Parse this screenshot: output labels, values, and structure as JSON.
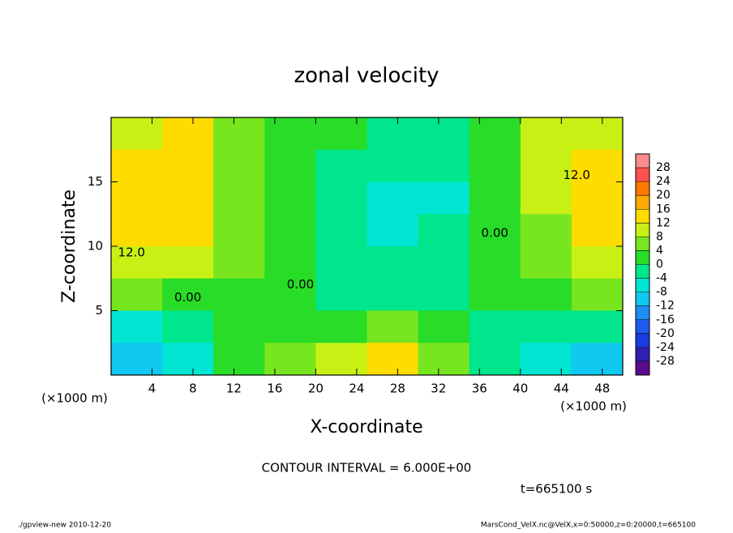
{
  "chart_data": {
    "type": "contour",
    "title": "zonal velocity",
    "x_label": "X-coordinate",
    "y_label": "Z-coordinate",
    "x_unit": "(×1000 m)",
    "xlim": [
      0,
      50
    ],
    "ylim": [
      0,
      20
    ],
    "xticks": [
      4,
      8,
      12,
      16,
      20,
      24,
      28,
      32,
      36,
      40,
      44,
      48
    ],
    "yticks": [
      5,
      10,
      15
    ],
    "x": [
      2.5,
      7.5,
      12.5,
      17.5,
      22.5,
      27.5,
      32.5,
      37.5,
      42.5,
      47.5
    ],
    "y": [
      18.75,
      16.25,
      13.75,
      11.25,
      8.75,
      6.25,
      3.75,
      1.25
    ],
    "values": [
      [
        10,
        12,
        6,
        2,
        0,
        -2,
        -2,
        2,
        8,
        8
      ],
      [
        12,
        14,
        6,
        2,
        -2,
        -4,
        -4,
        2,
        8,
        12
      ],
      [
        14,
        14,
        6,
        2,
        -2,
        -8,
        -6,
        0,
        8,
        14
      ],
      [
        14,
        12,
        6,
        2,
        -2,
        -6,
        -4,
        0,
        6,
        14
      ],
      [
        10,
        8,
        4,
        0,
        -2,
        -4,
        -2,
        0,
        6,
        10
      ],
      [
        4,
        2,
        2,
        0,
        -2,
        -2,
        -2,
        0,
        2,
        4
      ],
      [
        -6,
        -4,
        2,
        2,
        2,
        4,
        0,
        -2,
        -4,
        -2
      ],
      [
        -10,
        -8,
        0,
        4,
        10,
        12,
        6,
        -4,
        -8,
        -12
      ]
    ],
    "levels": [
      -32,
      -28,
      -24,
      -20,
      -16,
      -12,
      -8,
      -4,
      0,
      4,
      8,
      12,
      16,
      20,
      24,
      28,
      32
    ],
    "level_colors": [
      "#5a0a8c",
      "#3020b0",
      "#1a3ce0",
      "#1e5af0",
      "#1e8cf5",
      "#10c8f0",
      "#00e6d2",
      "#00e68c",
      "#28dc28",
      "#78e61e",
      "#c8f014",
      "#ffdc00",
      "#ffaa00",
      "#ff7800",
      "#ff5050",
      "#ff8c8c"
    ],
    "colorbar_ticks": [
      -28,
      -24,
      -20,
      -16,
      -12,
      -8,
      -4,
      0,
      4,
      8,
      12,
      16,
      20,
      24,
      28
    ],
    "contour_labels": [
      {
        "label": "12.0",
        "x": 2,
        "y": 9.5
      },
      {
        "label": "12.0",
        "x": 45.5,
        "y": 15.5
      },
      {
        "label": "0.00",
        "x": 7.5,
        "y": 6
      },
      {
        "label": "0.00",
        "x": 18.5,
        "y": 7
      },
      {
        "label": "0.00",
        "x": 37.5,
        "y": 11
      }
    ],
    "contour_interval": "CONTOUR INTERVAL = 6.000E+00",
    "time": "t=665100 s",
    "footer_left": "./gpview-new  2010-12-20",
    "footer_right": "MarsCond_VelX.nc@VelX,x=0:50000,z=0:20000,t=665100"
  }
}
